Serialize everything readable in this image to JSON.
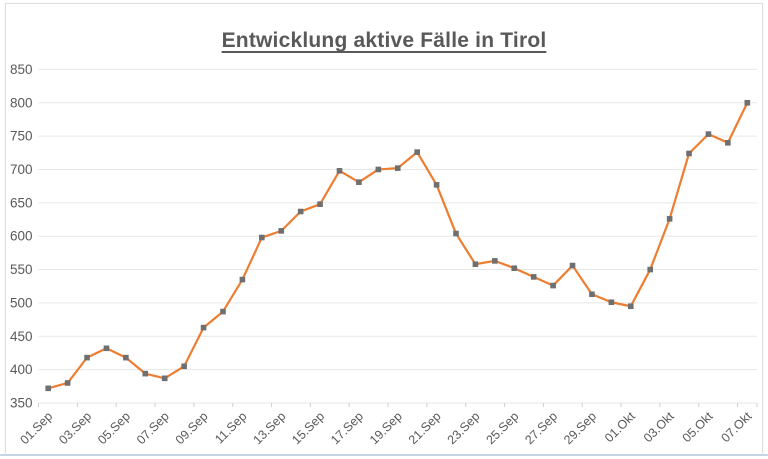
{
  "colors": {
    "line": "#ED7D31",
    "marker": "#6F6F6F",
    "grid": "#E7E7E7",
    "tick": "#CFCFCF",
    "axis_text": "#595959",
    "title_text": "#595959",
    "frame_border": "#DCDCDC",
    "bottom_rule": "#C6D5E4"
  },
  "chart_data": {
    "type": "line",
    "title": "Entwicklung aktive Fälle in Tirol",
    "xlabel": "",
    "ylabel": "",
    "ylim": [
      350,
      850
    ],
    "y_ticks": [
      350,
      400,
      450,
      500,
      550,
      600,
      650,
      700,
      750,
      800,
      850
    ],
    "x_label_every": 2,
    "grid": "horizontal",
    "legend_position": "none",
    "marker_shape": "square",
    "x": [
      "01.Sep",
      "02.Sep",
      "03.Sep",
      "04.Sep",
      "05.Sep",
      "06.Sep",
      "07.Sep",
      "08.Sep",
      "09.Sep",
      "10.Sep",
      "11.Sep",
      "12.Sep",
      "13.Sep",
      "14.Sep",
      "15.Sep",
      "16.Sep",
      "17.Sep",
      "18.Sep",
      "19.Sep",
      "20.Sep",
      "21.Sep",
      "22.Sep",
      "23.Sep",
      "24.Sep",
      "25.Sep",
      "26.Sep",
      "27.Sep",
      "28.Sep",
      "29.Sep",
      "30.Sep",
      "01.Okt",
      "02.Okt",
      "03.Okt",
      "04.Okt",
      "05.Okt",
      "06.Okt",
      "07.Okt"
    ],
    "values": [
      372,
      380,
      418,
      432,
      418,
      394,
      387,
      405,
      463,
      487,
      535,
      598,
      608,
      637,
      648,
      698,
      681,
      700,
      702,
      726,
      677,
      604,
      558,
      563,
      552,
      539,
      526,
      556,
      513,
      501,
      495,
      550,
      626,
      724,
      753,
      740,
      800
    ]
  }
}
